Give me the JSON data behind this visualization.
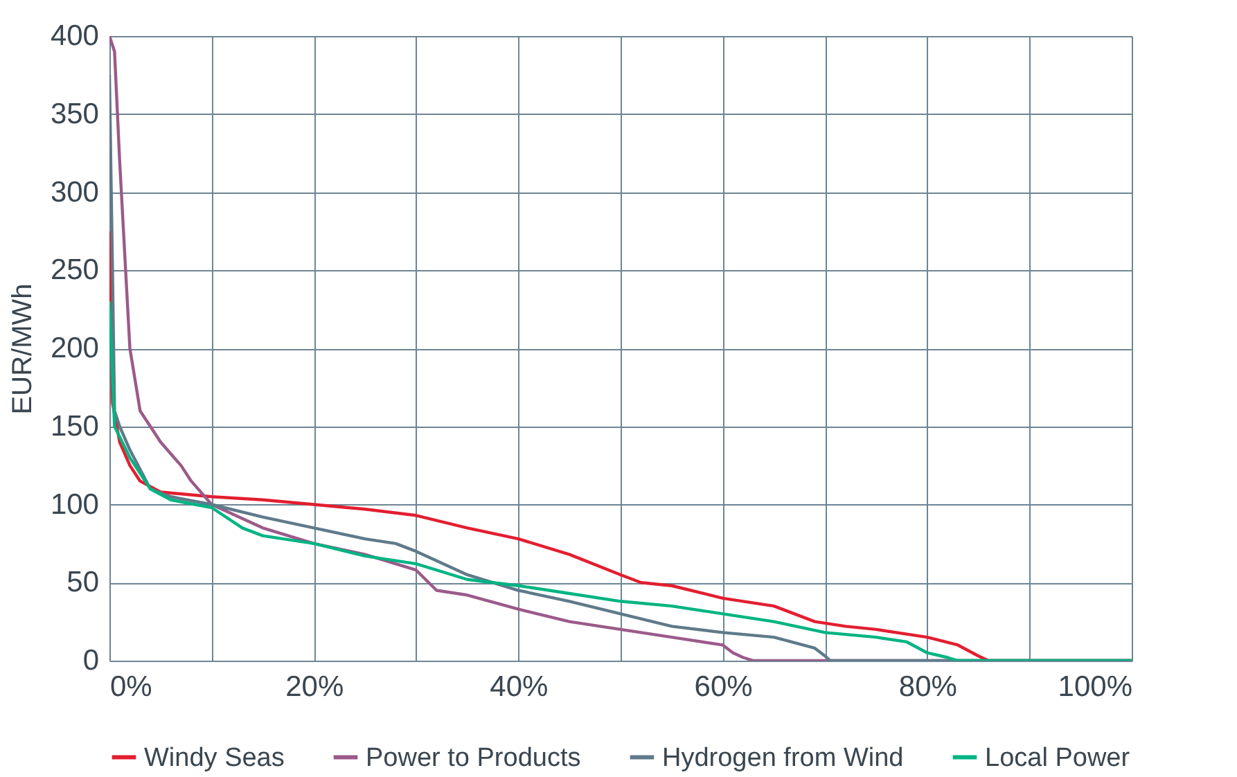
{
  "chart_data": {
    "type": "line",
    "ylabel": "EUR/MWh",
    "xlim": [
      0,
      100
    ],
    "ylim": [
      0,
      400
    ],
    "xticks": [
      {
        "value": 0,
        "label": "0%"
      },
      {
        "value": 10,
        "label": null
      },
      {
        "value": 20,
        "label": "20%"
      },
      {
        "value": 30,
        "label": null
      },
      {
        "value": 40,
        "label": "40%"
      },
      {
        "value": 50,
        "label": null
      },
      {
        "value": 60,
        "label": "60%"
      },
      {
        "value": 70,
        "label": null
      },
      {
        "value": 80,
        "label": "80%"
      },
      {
        "value": 90,
        "label": null
      },
      {
        "value": 100,
        "label": "100%"
      }
    ],
    "yticks": [
      0,
      50,
      100,
      150,
      200,
      250,
      300,
      350,
      400
    ],
    "grid": true,
    "legend": "bottom",
    "marker": "none",
    "line_style": "solid",
    "series": [
      {
        "name": "Windy Seas",
        "color": "#e31e30",
        "x": [
          0,
          0.3,
          1,
          2,
          3,
          5,
          10,
          15,
          20,
          25,
          30,
          35,
          40,
          45,
          50,
          52,
          55,
          60,
          65,
          69,
          72,
          75,
          80,
          83,
          85,
          86,
          100
        ],
        "values": [
          275,
          165,
          140,
          125,
          115,
          108,
          105,
          103,
          100,
          97,
          93,
          85,
          78,
          68,
          55,
          50,
          48,
          40,
          35,
          25,
          22,
          20,
          15,
          10,
          3,
          0,
          0
        ]
      },
      {
        "name": "Power to Products",
        "color": "#9b5a8a",
        "x": [
          0,
          0.5,
          1,
          1.5,
          2,
          3,
          4,
          5,
          7,
          8,
          10,
          15,
          20,
          25,
          30,
          32,
          35,
          40,
          45,
          50,
          55,
          60,
          61,
          62,
          63,
          100
        ],
        "values": [
          400,
          390,
          320,
          260,
          200,
          160,
          150,
          140,
          125,
          115,
          100,
          85,
          75,
          68,
          58,
          45,
          42,
          33,
          25,
          20,
          15,
          10,
          5,
          2,
          0,
          0
        ]
      },
      {
        "name": "Hydrogen from Wind",
        "color": "#5f7a8a",
        "x": [
          0,
          0.3,
          0.5,
          1,
          2,
          4,
          6,
          10,
          15,
          20,
          25,
          28,
          30,
          35,
          40,
          45,
          50,
          55,
          60,
          65,
          69,
          70,
          70.5,
          100
        ],
        "values": [
          375,
          250,
          160,
          150,
          135,
          110,
          105,
          100,
          92,
          85,
          78,
          75,
          70,
          55,
          45,
          38,
          30,
          22,
          18,
          15,
          8,
          3,
          0,
          0
        ]
      },
      {
        "name": "Local Power",
        "color": "#00b482",
        "x": [
          0,
          0.5,
          2,
          4,
          6,
          10,
          13,
          15,
          20,
          25,
          30,
          35,
          40,
          45,
          50,
          55,
          60,
          65,
          70,
          75,
          78,
          80,
          82,
          83,
          100
        ],
        "values": [
          230,
          150,
          130,
          110,
          103,
          98,
          85,
          80,
          75,
          67,
          62,
          52,
          48,
          43,
          38,
          35,
          30,
          25,
          18,
          15,
          12,
          5,
          2,
          0,
          0
        ]
      }
    ]
  }
}
